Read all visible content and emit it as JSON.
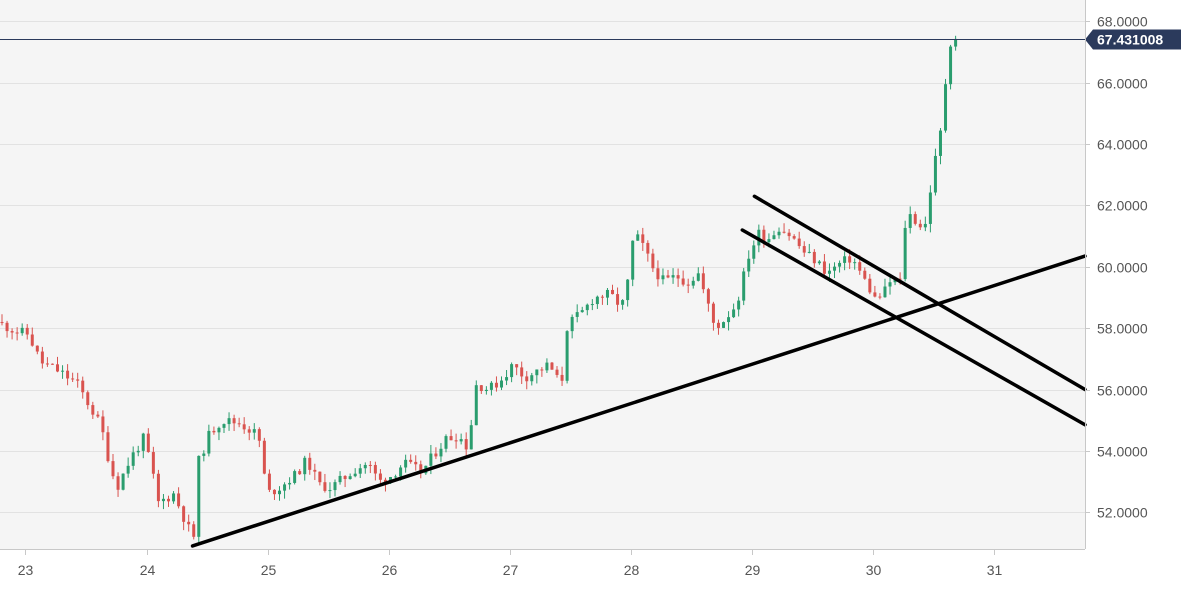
{
  "chart_data": {
    "type": "candlestick",
    "title": "",
    "xlabel": "",
    "ylabel": "",
    "x_tick_labels": [
      "23",
      "24",
      "25",
      "26",
      "27",
      "28",
      "29",
      "30",
      "31"
    ],
    "y_tick_labels": [
      "52.0000",
      "54.0000",
      "56.0000",
      "58.0000",
      "60.0000",
      "62.0000",
      "64.0000",
      "66.0000",
      "68.0000"
    ],
    "ylim": [
      50.8,
      68.7
    ],
    "xlim": [
      22.79,
      31.75
    ],
    "grid": true,
    "current_price": {
      "label": "67.431008",
      "value": 67.431008,
      "color": "#2b3a5c"
    },
    "colors": {
      "up": "#2a9d6e",
      "down": "#d9534f",
      "trendline": "#000000",
      "plot_background": "#f5f5f5",
      "grid": "#e2e2e2",
      "axis_text": "#555555"
    },
    "anchor_points": [
      [
        22.79,
        58.2
      ],
      [
        22.95,
        57.9
      ],
      [
        23.05,
        57.8
      ],
      [
        23.15,
        56.9
      ],
      [
        23.3,
        56.6
      ],
      [
        23.45,
        56.2
      ],
      [
        23.55,
        55.5
      ],
      [
        23.65,
        54.8
      ],
      [
        23.72,
        53.6
      ],
      [
        23.78,
        52.8
      ],
      [
        23.9,
        53.8
      ],
      [
        24.0,
        54.4
      ],
      [
        24.06,
        53.6
      ],
      [
        24.12,
        52.3
      ],
      [
        24.25,
        52.6
      ],
      [
        24.38,
        51.4
      ],
      [
        24.42,
        51.2
      ],
      [
        24.45,
        53.6
      ],
      [
        24.55,
        54.6
      ],
      [
        24.65,
        55.0
      ],
      [
        24.8,
        54.9
      ],
      [
        24.95,
        54.5
      ],
      [
        25.02,
        52.6
      ],
      [
        25.12,
        52.8
      ],
      [
        25.25,
        53.2
      ],
      [
        25.35,
        53.7
      ],
      [
        25.45,
        52.9
      ],
      [
        25.55,
        52.8
      ],
      [
        25.65,
        53.1
      ],
      [
        25.75,
        53.4
      ],
      [
        25.85,
        53.6
      ],
      [
        25.95,
        53.0
      ],
      [
        26.05,
        53.2
      ],
      [
        26.15,
        53.6
      ],
      [
        26.3,
        53.3
      ],
      [
        26.4,
        53.9
      ],
      [
        26.5,
        54.4
      ],
      [
        26.6,
        54.5
      ],
      [
        26.68,
        54.1
      ],
      [
        26.75,
        56.2
      ],
      [
        26.85,
        56.0
      ],
      [
        26.95,
        56.3
      ],
      [
        27.05,
        56.8
      ],
      [
        27.15,
        56.4
      ],
      [
        27.25,
        56.6
      ],
      [
        27.35,
        56.8
      ],
      [
        27.45,
        56.1
      ],
      [
        27.5,
        58.1
      ],
      [
        27.62,
        58.5
      ],
      [
        27.72,
        59.0
      ],
      [
        27.85,
        59.1
      ],
      [
        27.95,
        58.7
      ],
      [
        28.0,
        59.5
      ],
      [
        28.05,
        61.1
      ],
      [
        28.12,
        60.7
      ],
      [
        28.2,
        60.0
      ],
      [
        28.3,
        59.5
      ],
      [
        28.4,
        59.7
      ],
      [
        28.5,
        59.5
      ],
      [
        28.58,
        59.8
      ],
      [
        28.65,
        58.9
      ],
      [
        28.72,
        58.0
      ],
      [
        28.8,
        58.3
      ],
      [
        28.9,
        58.8
      ],
      [
        29.0,
        60.4
      ],
      [
        29.08,
        61.1
      ],
      [
        29.15,
        60.9
      ],
      [
        29.25,
        61.3
      ],
      [
        29.35,
        61.0
      ],
      [
        29.45,
        60.5
      ],
      [
        29.55,
        60.2
      ],
      [
        29.65,
        59.8
      ],
      [
        29.75,
        60.1
      ],
      [
        29.85,
        60.3
      ],
      [
        29.95,
        59.6
      ],
      [
        30.05,
        58.9
      ],
      [
        30.12,
        59.2
      ],
      [
        30.18,
        59.6
      ],
      [
        30.25,
        59.5
      ],
      [
        30.3,
        61.8
      ],
      [
        30.38,
        61.5
      ],
      [
        30.45,
        61.2
      ],
      [
        30.52,
        63.1
      ],
      [
        30.58,
        64.3
      ],
      [
        30.62,
        65.9
      ],
      [
        30.66,
        67.3
      ],
      [
        30.68,
        67.431008
      ]
    ],
    "trendlines": [
      {
        "name": "",
        "points": [
          [
            24.38,
            50.9
          ],
          [
            31.75,
            60.35
          ]
        ]
      },
      {
        "name": "",
        "points": [
          [
            29.02,
            62.3
          ],
          [
            31.75,
            56.0
          ]
        ]
      },
      {
        "name": "",
        "points": [
          [
            28.92,
            61.2
          ],
          [
            31.75,
            54.85
          ]
        ]
      }
    ]
  }
}
